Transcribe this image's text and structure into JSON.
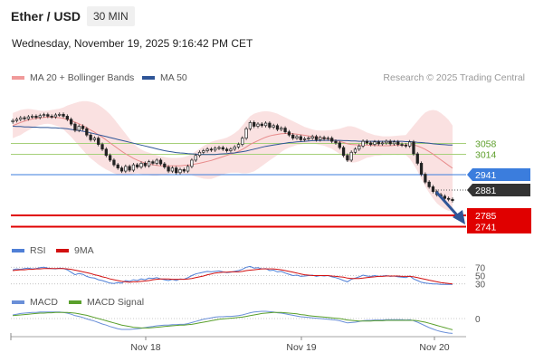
{
  "header": {
    "instrument": "Ether / USD",
    "interval": "30 MIN",
    "datetime": "Wednesday, November 19, 2025 9:16:42 PM CET",
    "credit": "Research © 2025 Trading Central"
  },
  "legend": {
    "ma20": "MA 20 + Bollinger Bands",
    "ma50": "MA 50",
    "rsi": "RSI",
    "rsi_ma": "9MA",
    "macd": "MACD",
    "macd_signal": "MACD Signal"
  },
  "colors": {
    "bollinger_fill": "#f9dcdc",
    "ma20": "#e88b8b",
    "ma50": "#2f5597",
    "pivot": "#3b7ddd",
    "support": "#e00000",
    "resistance": "#a6d07a",
    "current_price": "#333333",
    "rsi": "#4f7fd6",
    "rsi_ma": "#d21010",
    "macd": "#6a8fd8",
    "macd_signal": "#5aa02c",
    "arrow": "#2f5597"
  },
  "chart_data": {
    "type": "candlestick",
    "x_ticks": [
      "Nov 18",
      "Nov 19",
      "Nov 20"
    ],
    "ylim": [
      2700,
      3200
    ],
    "levels": [
      {
        "value": 3058,
        "label": "3058",
        "kind": "resistance"
      },
      {
        "value": 3014,
        "label": "3014",
        "kind": "resistance"
      },
      {
        "value": 2941,
        "label": "2941",
        "kind": "pivot"
      },
      {
        "value": 2881,
        "label": "2881",
        "kind": "current"
      },
      {
        "value": 2785,
        "label": "2785",
        "kind": "support"
      },
      {
        "value": 2741,
        "label": "2741",
        "kind": "support"
      }
    ],
    "close": [
      3136,
      3140,
      3145,
      3142,
      3148,
      3150,
      3146,
      3152,
      3155,
      3150,
      3148,
      3154,
      3156,
      3150,
      3140,
      3125,
      3105,
      3118,
      3110,
      3090,
      3075,
      3080,
      3060,
      3045,
      3025,
      3010,
      2995,
      2985,
      2975,
      2990,
      2978,
      2995,
      2988,
      3000,
      2992,
      3005,
      3000,
      3010,
      2998,
      2988,
      2975,
      2985,
      2970,
      2980,
      2975,
      2990,
      3010,
      3025,
      3035,
      3040,
      3045,
      3042,
      3048,
      3050,
      3045,
      3040,
      3045,
      3052,
      3060,
      3080,
      3110,
      3130,
      3118,
      3125,
      3120,
      3128,
      3115,
      3120,
      3108,
      3112,
      3100,
      3090,
      3080,
      3085,
      3075,
      3078,
      3080,
      3085,
      3075,
      3082,
      3078,
      3080,
      3070,
      3065,
      3050,
      3025,
      3010,
      3035,
      3045,
      3055,
      3070,
      3065,
      3060,
      3068,
      3062,
      3065,
      3070,
      3062,
      3068,
      3060,
      3058,
      3055,
      3068,
      3030,
      3000,
      2965,
      2940,
      2925,
      2910,
      2900,
      2895,
      2888,
      2885,
      2881
    ],
    "ma20": [
      3120,
      3125,
      3130,
      3134,
      3138,
      3141,
      3143,
      3145,
      3146,
      3147,
      3147,
      3146,
      3145,
      3143,
      3140,
      3136,
      3131,
      3126,
      3120,
      3113,
      3106,
      3099,
      3091,
      3083,
      3074,
      3065,
      3056,
      3047,
      3038,
      3030,
      3023,
      3016,
      3010,
      3005,
      3001,
      2998,
      2995,
      2993,
      2992,
      2992,
      2992,
      2992,
      2992,
      2992,
      2993,
      2994,
      2996,
      2998,
      3000,
      3003,
      3006,
      3009,
      3013,
      3017,
      3021,
      3025,
      3029,
      3033,
      3038,
      3044,
      3052,
      3060,
      3066,
      3072,
      3078,
      3083,
      3087,
      3090,
      3092,
      3094,
      3095,
      3095,
      3094,
      3093,
      3091,
      3089,
      3087,
      3085,
      3083,
      3081,
      3080,
      3078,
      3076,
      3073,
      3070,
      3066,
      3062,
      3060,
      3059,
      3058,
      3058,
      3058,
      3057,
      3057,
      3056,
      3056,
      3056,
      3056,
      3057,
      3057,
      3058,
      3058,
      3060,
      3058,
      3055,
      3050,
      3044,
      3037,
      3029,
      3020,
      3011,
      3002,
      2993,
      2984
    ],
    "bb_upper": [
      3160,
      3165,
      3170,
      3172,
      3173,
      3172,
      3170,
      3168,
      3167,
      3168,
      3170,
      3172,
      3174,
      3178,
      3184,
      3188,
      3192,
      3196,
      3198,
      3198,
      3196,
      3192,
      3186,
      3178,
      3168,
      3156,
      3142,
      3126,
      3110,
      3094,
      3078,
      3064,
      3052,
      3044,
      3038,
      3034,
      3030,
      3026,
      3022,
      3020,
      3018,
      3017,
      3017,
      3018,
      3020,
      3024,
      3030,
      3038,
      3046,
      3055,
      3062,
      3068,
      3072,
      3075,
      3078,
      3082,
      3088,
      3096,
      3106,
      3120,
      3136,
      3150,
      3158,
      3162,
      3165,
      3166,
      3165,
      3162,
      3158,
      3152,
      3146,
      3140,
      3134,
      3128,
      3122,
      3116,
      3112,
      3108,
      3105,
      3104,
      3104,
      3105,
      3106,
      3108,
      3110,
      3114,
      3118,
      3118,
      3115,
      3110,
      3104,
      3098,
      3094,
      3090,
      3088,
      3086,
      3086,
      3086,
      3087,
      3088,
      3089,
      3090,
      3105,
      3120,
      3135,
      3150,
      3162,
      3168,
      3170,
      3168,
      3160,
      3150,
      3138,
      3120
    ],
    "bb_lower": [
      3080,
      3085,
      3090,
      3098,
      3105,
      3112,
      3118,
      3122,
      3125,
      3126,
      3124,
      3120,
      3116,
      3108,
      3096,
      3084,
      3070,
      3056,
      3042,
      3028,
      3016,
      3006,
      2996,
      2988,
      2980,
      2974,
      2968,
      2964,
      2962,
      2962,
      2964,
      2966,
      2968,
      2966,
      2964,
      2962,
      2960,
      2960,
      2962,
      2964,
      2966,
      2967,
      2967,
      2966,
      2966,
      2964,
      2962,
      2958,
      2954,
      2951,
      2950,
      2950,
      2954,
      2959,
      2964,
      2968,
      2970,
      2970,
      2970,
      2968,
      2968,
      2970,
      2974,
      2982,
      2991,
      3000,
      3009,
      3018,
      3026,
      3036,
      3044,
      3050,
      3054,
      3058,
      3060,
      3062,
      3062,
      3062,
      3061,
      3058,
      3056,
      3051,
      3046,
      3038,
      3030,
      3018,
      3006,
      3002,
      3003,
      3006,
      3012,
      3018,
      3020,
      3024,
      3024,
      3026,
      3026,
      3026,
      3027,
      3026,
      3027,
      3026,
      3015,
      2996,
      2975,
      2950,
      2926,
      2906,
      2888,
      2872,
      2862,
      2854,
      2848,
      2848
    ],
    "ma50": [
      3118,
      3117,
      3117,
      3116,
      3116,
      3115,
      3115,
      3114,
      3114,
      3114,
      3113,
      3113,
      3112,
      3111,
      3110,
      3108,
      3106,
      3104,
      3102,
      3100,
      3097,
      3094,
      3091,
      3088,
      3085,
      3082,
      3079,
      3076,
      3073,
      3070,
      3067,
      3064,
      3061,
      3058,
      3055,
      3052,
      3049,
      3046,
      3043,
      3040,
      3038,
      3036,
      3034,
      3033,
      3032,
      3031,
      3030,
      3029,
      3028,
      3028,
      3028,
      3028,
      3028,
      3029,
      3030,
      3031,
      3032,
      3033,
      3035,
      3037,
      3039,
      3042,
      3045,
      3048,
      3051,
      3054,
      3056,
      3058,
      3060,
      3062,
      3064,
      3066,
      3067,
      3068,
      3069,
      3070,
      3071,
      3072,
      3072,
      3073,
      3073,
      3073,
      3073,
      3073,
      3073,
      3072,
      3072,
      3071,
      3071,
      3070,
      3070,
      3070,
      3070,
      3070,
      3070,
      3070,
      3070,
      3070,
      3070,
      3070,
      3070,
      3069,
      3069,
      3068,
      3067,
      3066,
      3065,
      3064,
      3062,
      3061,
      3060,
      3059,
      3058,
      3058
    ],
    "rsi": {
      "ticks": [
        70,
        50,
        30
      ],
      "rsi": [
        64,
        66,
        65,
        67,
        68,
        66,
        67,
        69,
        70,
        68,
        67,
        66,
        68,
        67,
        64,
        58,
        52,
        55,
        53,
        48,
        45,
        44,
        40,
        38,
        35,
        32,
        31,
        33,
        32,
        38,
        36,
        40,
        38,
        42,
        40,
        44,
        43,
        45,
        42,
        40,
        38,
        41,
        38,
        42,
        41,
        45,
        50,
        54,
        56,
        58,
        60,
        59,
        60,
        61,
        59,
        57,
        58,
        60,
        62,
        65,
        70,
        72,
        68,
        69,
        66,
        67,
        62,
        63,
        59,
        60,
        56,
        53,
        50,
        51,
        48,
        49,
        50,
        51,
        48,
        50,
        49,
        50,
        47,
        45,
        42,
        38,
        35,
        41,
        44,
        47,
        51,
        49,
        48,
        50,
        48,
        49,
        50,
        48,
        49,
        47,
        46,
        45,
        49,
        42,
        38,
        34,
        32,
        31,
        30,
        30,
        29,
        29,
        29,
        29
      ],
      "ma": [
        62,
        63,
        64,
        64,
        65,
        65,
        66,
        66,
        67,
        67,
        67,
        67,
        67,
        67,
        66,
        65,
        63,
        61,
        59,
        57,
        55,
        52,
        50,
        47,
        45,
        42,
        40,
        38,
        36,
        35,
        34,
        35,
        35,
        36,
        37,
        38,
        40,
        41,
        42,
        42,
        42,
        41,
        41,
        41,
        41,
        42,
        43,
        45,
        47,
        49,
        52,
        54,
        56,
        57,
        58,
        58,
        59,
        59,
        59,
        60,
        62,
        63,
        64,
        65,
        66,
        66,
        66,
        66,
        65,
        64,
        62,
        60,
        58,
        56,
        54,
        52,
        51,
        50,
        50,
        50,
        50,
        50,
        49,
        48,
        47,
        46,
        44,
        43,
        43,
        43,
        44,
        45,
        46,
        47,
        48,
        48,
        49,
        49,
        49,
        49,
        48,
        48,
        48,
        47,
        45,
        43,
        41,
        39,
        37,
        35,
        33,
        32,
        31,
        30
      ]
    },
    "macd": {
      "ticks": [
        0
      ],
      "ylim": [
        -45,
        25
      ],
      "macd": [
        10,
        12,
        14,
        15,
        16,
        17,
        17,
        18,
        18,
        18,
        18,
        18,
        18,
        17,
        15,
        12,
        8,
        6,
        3,
        -1,
        -4,
        -7,
        -11,
        -15,
        -18,
        -22,
        -25,
        -28,
        -30,
        -30,
        -30,
        -29,
        -28,
        -27,
        -25,
        -23,
        -22,
        -20,
        -19,
        -18,
        -18,
        -17,
        -17,
        -16,
        -16,
        -14,
        -11,
        -8,
        -5,
        -2,
        0,
        2,
        4,
        5,
        5,
        6,
        6,
        7,
        8,
        10,
        13,
        16,
        18,
        19,
        20,
        20,
        19,
        18,
        16,
        15,
        13,
        11,
        9,
        7,
        5,
        4,
        3,
        2,
        1,
        0,
        -1,
        -2,
        -3,
        -4,
        -6,
        -9,
        -12,
        -11,
        -10,
        -8,
        -6,
        -5,
        -5,
        -4,
        -4,
        -4,
        -3,
        -3,
        -3,
        -3,
        -3,
        -4,
        -3,
        -6,
        -10,
        -15,
        -20,
        -25,
        -29,
        -33,
        -36,
        -38,
        -40,
        -41
      ],
      "signal": [
        8,
        9,
        10,
        11,
        12,
        13,
        14,
        15,
        15,
        16,
        16,
        17,
        17,
        17,
        17,
        16,
        15,
        13,
        11,
        9,
        6,
        3,
        0,
        -3,
        -6,
        -9,
        -12,
        -15,
        -18,
        -20,
        -22,
        -24,
        -25,
        -26,
        -26,
        -26,
        -25,
        -24,
        -23,
        -22,
        -21,
        -20,
        -19,
        -18,
        -18,
        -17,
        -16,
        -14,
        -12,
        -10,
        -8,
        -6,
        -4,
        -2,
        -1,
        0,
        1,
        2,
        3,
        4,
        6,
        8,
        10,
        12,
        14,
        15,
        16,
        17,
        17,
        17,
        16,
        15,
        14,
        13,
        11,
        10,
        8,
        7,
        6,
        5,
        4,
        3,
        2,
        1,
        0,
        -2,
        -4,
        -5,
        -6,
        -7,
        -7,
        -7,
        -7,
        -6,
        -6,
        -6,
        -5,
        -5,
        -5,
        -5,
        -5,
        -5,
        -5,
        -5,
        -6,
        -8,
        -10,
        -13,
        -16,
        -19,
        -22,
        -25,
        -28,
        -31
      ]
    }
  }
}
